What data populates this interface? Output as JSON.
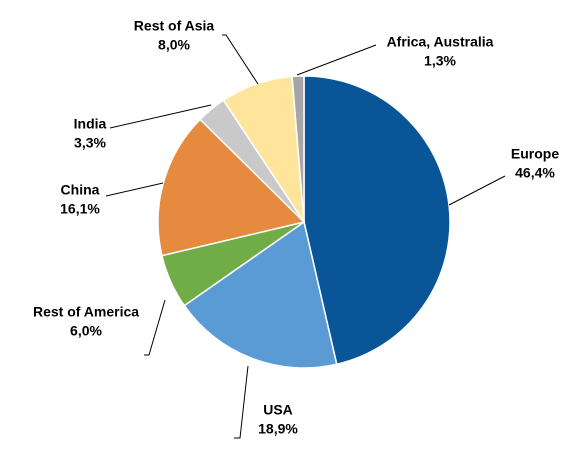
{
  "chart_data": {
    "type": "pie",
    "categories": [
      "Europe",
      "USA",
      "Rest of America",
      "China",
      "India",
      "Rest of Asia",
      "Africa, Australia"
    ],
    "values": [
      46.4,
      18.9,
      6.0,
      16.1,
      3.3,
      8.0,
      1.3
    ],
    "value_labels": [
      "46,4%",
      "18,9%",
      "6,0%",
      "16,1%",
      "3,3%",
      "8,0%",
      "1,3%"
    ],
    "colors": [
      "#0a5597",
      "#5b9bd5",
      "#70ad47",
      "#e68a3f",
      "#c9c9c9",
      "#ffe59b",
      "#a6a6a6"
    ]
  }
}
